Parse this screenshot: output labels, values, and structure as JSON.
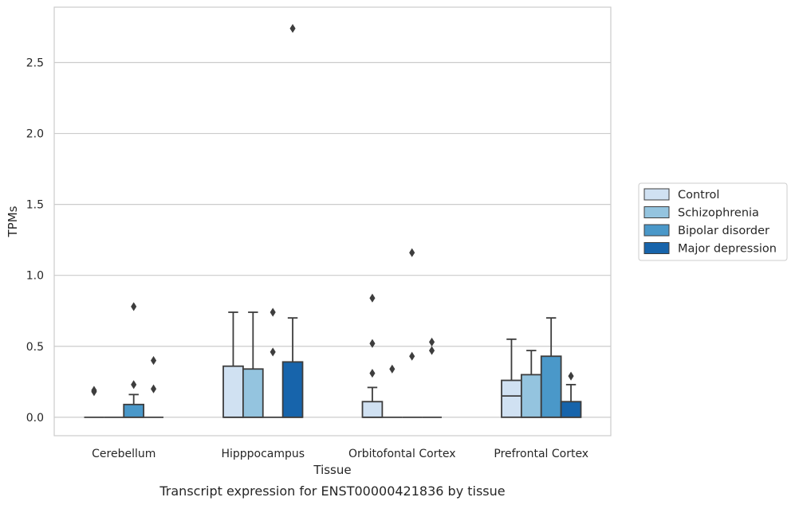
{
  "chart_data": {
    "type": "box",
    "caption": "Transcript expression for ENST00000421836 by tissue",
    "xlabel": "Tissue",
    "ylabel": "TPMs",
    "ylim": [
      -0.13,
      2.89
    ],
    "yticks": [
      0.0,
      0.5,
      1.0,
      1.5,
      2.0,
      2.5
    ],
    "ytick_labels": [
      "0.0",
      "0.5",
      "1.0",
      "1.5",
      "2.0",
      "2.5"
    ],
    "grid": "horizontal",
    "legend_position": "right",
    "categories": [
      "Cerebellum",
      "Hipppocampus",
      "Orbitofontal Cortex",
      "Prefrontal Cortex"
    ],
    "series": [
      {
        "name": "Control",
        "color": "#d0e1f2",
        "boxes": [
          {
            "q1": 0,
            "median": 0,
            "q3": 0,
            "whislo": 0,
            "whishi": 0,
            "fliers": [
              0.18,
              0.19
            ]
          },
          {
            "q1": 0,
            "median": 0,
            "q3": 0.36,
            "whislo": 0,
            "whishi": 0.74,
            "fliers": []
          },
          {
            "q1": 0,
            "median": 0,
            "q3": 0.11,
            "whislo": 0,
            "whishi": 0.21,
            "fliers": [
              0.31,
              0.52,
              0.84
            ]
          },
          {
            "q1": 0,
            "median": 0.15,
            "q3": 0.26,
            "whislo": 0,
            "whishi": 0.55,
            "fliers": []
          }
        ]
      },
      {
        "name": "Schizophrenia",
        "color": "#94c4df",
        "boxes": [
          {
            "q1": 0,
            "median": 0,
            "q3": 0,
            "whislo": 0,
            "whishi": 0,
            "fliers": []
          },
          {
            "q1": 0,
            "median": 0,
            "q3": 0.34,
            "whislo": 0,
            "whishi": 0.74,
            "fliers": []
          },
          {
            "q1": 0,
            "median": 0,
            "q3": 0,
            "whislo": 0,
            "whishi": 0,
            "fliers": [
              0.34
            ]
          },
          {
            "q1": 0,
            "median": 0,
            "q3": 0.3,
            "whislo": 0,
            "whishi": 0.47,
            "fliers": []
          }
        ]
      },
      {
        "name": "Bipolar disorder",
        "color": "#4a98c9",
        "boxes": [
          {
            "q1": 0,
            "median": 0,
            "q3": 0.09,
            "whislo": 0,
            "whishi": 0.16,
            "fliers": [
              0.23,
              0.78
            ]
          },
          {
            "q1": 0,
            "median": 0,
            "q3": 0,
            "whislo": 0,
            "whishi": 0,
            "fliers": [
              0.46,
              0.74
            ]
          },
          {
            "q1": 0,
            "median": 0,
            "q3": 0,
            "whislo": 0,
            "whishi": 0,
            "fliers": [
              0.43,
              1.16
            ]
          },
          {
            "q1": 0,
            "median": 0,
            "q3": 0.43,
            "whislo": 0,
            "whishi": 0.7,
            "fliers": []
          }
        ]
      },
      {
        "name": "Major depression",
        "color": "#1764ab",
        "boxes": [
          {
            "q1": 0,
            "median": 0,
            "q3": 0,
            "whislo": 0,
            "whishi": 0,
            "fliers": [
              0.2,
              0.4
            ]
          },
          {
            "q1": 0,
            "median": 0,
            "q3": 0.39,
            "whislo": 0,
            "whishi": 0.7,
            "fliers": [
              2.74
            ]
          },
          {
            "q1": 0,
            "median": 0,
            "q3": 0,
            "whislo": 0,
            "whishi": 0,
            "fliers": [
              0.47,
              0.53
            ]
          },
          {
            "q1": 0,
            "median": 0,
            "q3": 0.11,
            "whislo": 0,
            "whishi": 0.23,
            "fliers": [
              0.29
            ]
          }
        ]
      }
    ]
  }
}
